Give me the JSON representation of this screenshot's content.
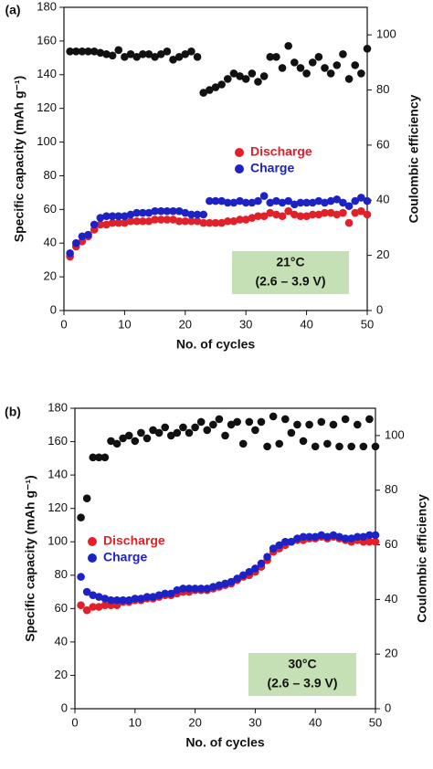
{
  "chart_data": [
    {
      "type": "scatter",
      "label": "(a)",
      "xlabel": "No. of cycles",
      "ylabel": "Specific capacity (mAh g⁻¹)",
      "y2label": "Coulombic efficiency",
      "annotation": [
        "21°C",
        "(2.6 – 3.9 V)"
      ],
      "xlim": [
        0,
        50
      ],
      "xticks": [
        0,
        10,
        20,
        30,
        40,
        50
      ],
      "ylim": [
        0,
        180
      ],
      "yticks": [
        0,
        20,
        40,
        60,
        80,
        100,
        120,
        140,
        160,
        180
      ],
      "y2lim": [
        0,
        110
      ],
      "y2ticks": [
        0,
        20,
        40,
        60,
        80,
        100
      ],
      "legend": "center",
      "x": [
        1,
        2,
        3,
        4,
        5,
        6,
        7,
        8,
        9,
        10,
        11,
        12,
        13,
        14,
        15,
        16,
        17,
        18,
        19,
        20,
        21,
        22,
        23,
        24,
        25,
        26,
        27,
        28,
        29,
        30,
        31,
        32,
        33,
        34,
        35,
        36,
        37,
        38,
        39,
        40,
        41,
        42,
        43,
        44,
        45,
        46,
        47,
        48,
        49,
        50
      ],
      "series": [
        {
          "name": "Discharge",
          "color": "#e3202a",
          "values": [
            32,
            38,
            41,
            44,
            48,
            51,
            51,
            52,
            52,
            52,
            53,
            53,
            53,
            53,
            54,
            54,
            54,
            54,
            53,
            53,
            53,
            53,
            52,
            52,
            52,
            52,
            53,
            53,
            54,
            54,
            55,
            56,
            56,
            58,
            57,
            56,
            59,
            57,
            56,
            56,
            57,
            57,
            58,
            58,
            57,
            58,
            52,
            58,
            59,
            57
          ]
        },
        {
          "name": "Charge",
          "color": "#1c22c4",
          "values": [
            34,
            40,
            44,
            45,
            51,
            55,
            56,
            56,
            56,
            56,
            57,
            58,
            58,
            58,
            59,
            59,
            59,
            59,
            59,
            58,
            57,
            57,
            57,
            65,
            65,
            65,
            64,
            64,
            65,
            64,
            64,
            65,
            68,
            64,
            65,
            64,
            65,
            63,
            64,
            64,
            64,
            65,
            64,
            65,
            66,
            64,
            62,
            65,
            67,
            65
          ]
        },
        {
          "color": "#111111",
          "axis": "y2",
          "values": [
            94,
            94,
            94,
            94,
            94,
            93.5,
            93,
            92.5,
            94.5,
            92,
            93,
            92,
            93,
            93,
            92,
            93,
            94,
            91,
            92,
            93,
            94,
            92,
            79,
            80,
            81,
            82,
            84,
            86,
            85,
            84,
            86,
            83,
            85,
            92,
            92,
            88,
            96,
            90,
            88,
            86,
            90,
            92,
            88,
            86,
            89,
            93,
            84,
            89,
            86,
            95
          ]
        }
      ]
    },
    {
      "type": "scatter",
      "label": "(b)",
      "xlabel": "No. of cycles",
      "ylabel": "Specific capacity (mAh g⁻¹)",
      "y2label": "Coulombic efficiency",
      "annotation": [
        "30°C",
        "(2.6 – 3.9 V)"
      ],
      "xlim": [
        0,
        50
      ],
      "xticks": [
        0,
        10,
        20,
        30,
        40,
        50
      ],
      "ylim": [
        0,
        180
      ],
      "yticks": [
        0,
        20,
        40,
        60,
        80,
        100,
        120,
        140,
        160,
        180
      ],
      "y2lim": [
        0,
        110
      ],
      "y2ticks": [
        0,
        20,
        40,
        60,
        80,
        100
      ],
      "legend": "center left",
      "x": [
        1,
        2,
        3,
        4,
        5,
        6,
        7,
        8,
        9,
        10,
        11,
        12,
        13,
        14,
        15,
        16,
        17,
        18,
        19,
        20,
        21,
        22,
        23,
        24,
        25,
        26,
        27,
        28,
        29,
        30,
        31,
        32,
        33,
        34,
        35,
        36,
        37,
        38,
        39,
        40,
        41,
        42,
        43,
        44,
        45,
        46,
        47,
        48,
        49,
        50
      ],
      "series": [
        {
          "name": "Discharge",
          "color": "#e3202a",
          "values": [
            62,
            59,
            61,
            61,
            62,
            62,
            62,
            64,
            64,
            65,
            65,
            66,
            66,
            67,
            68,
            68,
            69,
            70,
            70,
            71,
            71,
            71,
            72,
            73,
            74,
            75,
            77,
            79,
            80,
            82,
            85,
            89,
            94,
            96,
            98,
            100,
            101,
            101,
            102,
            102,
            103,
            102,
            103,
            102,
            101,
            100,
            101,
            100,
            100,
            100
          ]
        },
        {
          "name": "Charge",
          "color": "#1c22c4",
          "values": [
            79,
            70,
            68,
            67,
            66,
            65,
            65,
            65,
            65,
            66,
            66,
            67,
            67,
            68,
            69,
            69,
            71,
            72,
            72,
            72,
            72,
            72,
            73,
            74,
            75,
            76,
            78,
            80,
            82,
            84,
            87,
            91,
            96,
            98,
            100,
            100,
            102,
            103,
            103,
            103,
            104,
            103,
            104,
            103,
            102,
            102,
            103,
            103,
            104,
            104
          ]
        },
        {
          "color": "#111111",
          "axis": "y2",
          "values": [
            70,
            77,
            92,
            92,
            92,
            98,
            97,
            99,
            100,
            98,
            101,
            99,
            102,
            101,
            103,
            100,
            101,
            103,
            101,
            103,
            105,
            102,
            104,
            106,
            100,
            104,
            105,
            97,
            105,
            102,
            105,
            96,
            107,
            97,
            106,
            101,
            104,
            98,
            104,
            96,
            105,
            97,
            104,
            96,
            106,
            96,
            104,
            96,
            106,
            96
          ]
        }
      ]
    }
  ]
}
